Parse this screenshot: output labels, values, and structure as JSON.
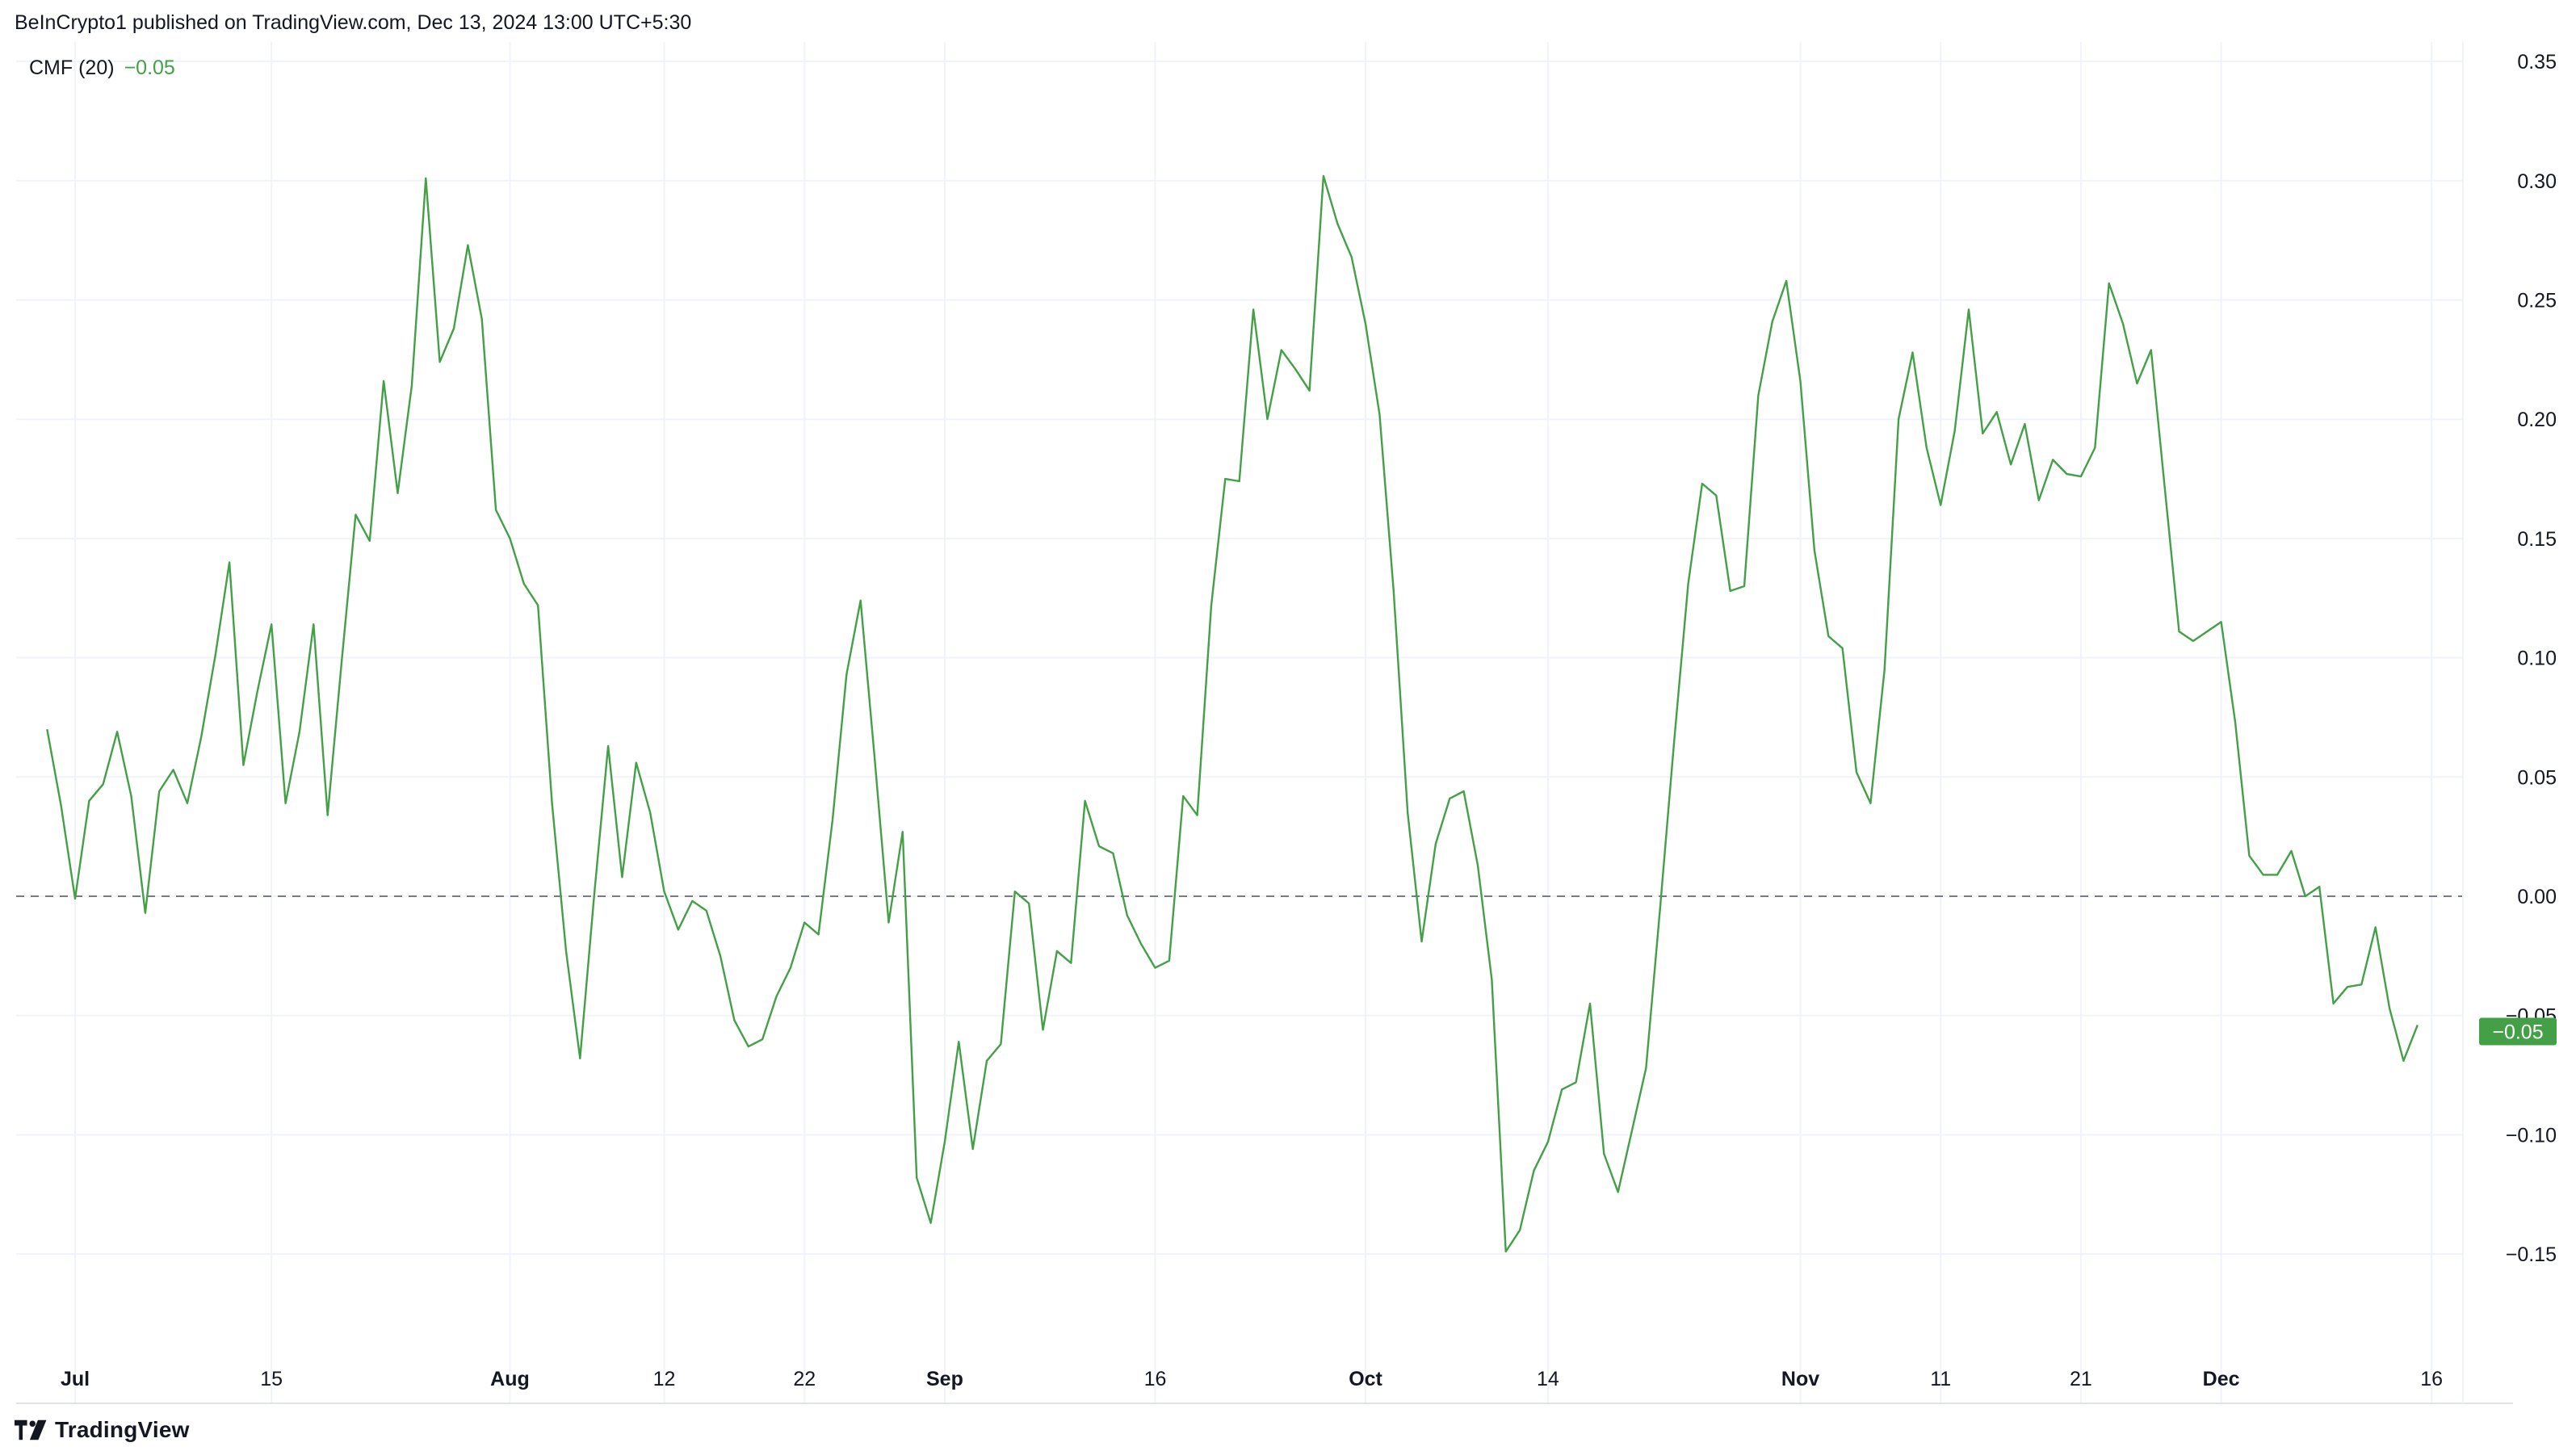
{
  "header": {
    "publisher": "BeInCrypto1 published on TradingView.com, Dec 13, 2024 13:00 UTC+5:30"
  },
  "legend": {
    "indicator": "CMF (20)",
    "value": "−0.05"
  },
  "price_tag": "−0.05",
  "brand": {
    "name": "TradingView"
  },
  "colors": {
    "line": "#43a047",
    "tag": "#43a047",
    "grid": "#f0f3fa",
    "zero_line": "#787b86",
    "text": "#131722"
  },
  "chart_data": {
    "type": "line",
    "title": "",
    "xlabel": "",
    "ylabel": "",
    "ylim": [
      -0.19,
      0.355
    ],
    "grid": true,
    "zero_line": "dashed",
    "y_ticks": [
      "0.35",
      "0.30",
      "0.25",
      "0.20",
      "0.15",
      "0.10",
      "0.05",
      "0.00",
      "−0.05",
      "−0.10",
      "−0.15"
    ],
    "x_ticks": [
      {
        "label": "Jul",
        "date": "2024-07-01",
        "bold": true
      },
      {
        "label": "15",
        "date": "2024-07-15",
        "bold": false
      },
      {
        "label": "Aug",
        "date": "2024-08-01",
        "bold": true
      },
      {
        "label": "12",
        "date": "2024-08-12",
        "bold": false
      },
      {
        "label": "22",
        "date": "2024-08-22",
        "bold": false
      },
      {
        "label": "Sep",
        "date": "2024-09-01",
        "bold": true
      },
      {
        "label": "16",
        "date": "2024-09-16",
        "bold": false
      },
      {
        "label": "Oct",
        "date": "2024-10-01",
        "bold": true
      },
      {
        "label": "14",
        "date": "2024-10-14",
        "bold": false
      },
      {
        "label": "Nov",
        "date": "2024-11-01",
        "bold": true
      },
      {
        "label": "11",
        "date": "2024-11-11",
        "bold": false
      },
      {
        "label": "21",
        "date": "2024-11-21",
        "bold": false
      },
      {
        "label": "Dec",
        "date": "2024-12-01",
        "bold": true
      },
      {
        "label": "16",
        "date": "2024-12-16",
        "bold": false
      }
    ],
    "series": [
      {
        "name": "CMF (20)",
        "color": "#43a047",
        "points": [
          [
            "2024-06-29",
            0.07
          ],
          [
            "2024-06-30",
            0.038
          ],
          [
            "2024-07-01",
            -0.001
          ],
          [
            "2024-07-02",
            0.04
          ],
          [
            "2024-07-03",
            0.047
          ],
          [
            "2024-07-04",
            0.069
          ],
          [
            "2024-07-05",
            0.042
          ],
          [
            "2024-07-06",
            -0.007
          ],
          [
            "2024-07-07",
            0.044
          ],
          [
            "2024-07-08",
            0.053
          ],
          [
            "2024-07-09",
            0.039
          ],
          [
            "2024-07-10",
            0.067
          ],
          [
            "2024-07-11",
            0.101
          ],
          [
            "2024-07-12",
            0.14
          ],
          [
            "2024-07-13",
            0.055
          ],
          [
            "2024-07-14",
            0.086
          ],
          [
            "2024-07-15",
            0.114
          ],
          [
            "2024-07-16",
            0.039
          ],
          [
            "2024-07-17",
            0.069
          ],
          [
            "2024-07-18",
            0.114
          ],
          [
            "2024-07-19",
            0.034
          ],
          [
            "2024-07-20",
            0.098
          ],
          [
            "2024-07-21",
            0.16
          ],
          [
            "2024-07-22",
            0.149
          ],
          [
            "2024-07-23",
            0.216
          ],
          [
            "2024-07-24",
            0.169
          ],
          [
            "2024-07-25",
            0.214
          ],
          [
            "2024-07-26",
            0.301
          ],
          [
            "2024-07-27",
            0.224
          ],
          [
            "2024-07-28",
            0.238
          ],
          [
            "2024-07-29",
            0.273
          ],
          [
            "2024-07-30",
            0.242
          ],
          [
            "2024-07-31",
            0.162
          ],
          [
            "2024-08-01",
            0.15
          ],
          [
            "2024-08-02",
            0.131
          ],
          [
            "2024-08-03",
            0.122
          ],
          [
            "2024-08-04",
            0.039
          ],
          [
            "2024-08-05",
            -0.023
          ],
          [
            "2024-08-06",
            -0.068
          ],
          [
            "2024-08-07",
            0.0
          ],
          [
            "2024-08-08",
            0.063
          ],
          [
            "2024-08-09",
            0.008
          ],
          [
            "2024-08-10",
            0.056
          ],
          [
            "2024-08-11",
            0.035
          ],
          [
            "2024-08-12",
            0.002
          ],
          [
            "2024-08-13",
            -0.014
          ],
          [
            "2024-08-14",
            -0.002
          ],
          [
            "2024-08-15",
            -0.006
          ],
          [
            "2024-08-16",
            -0.025
          ],
          [
            "2024-08-17",
            -0.052
          ],
          [
            "2024-08-18",
            -0.063
          ],
          [
            "2024-08-19",
            -0.06
          ],
          [
            "2024-08-20",
            -0.042
          ],
          [
            "2024-08-21",
            -0.03
          ],
          [
            "2024-08-22",
            -0.011
          ],
          [
            "2024-08-23",
            -0.016
          ],
          [
            "2024-08-24",
            0.032
          ],
          [
            "2024-08-25",
            0.093
          ],
          [
            "2024-08-26",
            0.124
          ],
          [
            "2024-08-27",
            0.058
          ],
          [
            "2024-08-28",
            -0.011
          ],
          [
            "2024-08-29",
            0.027
          ],
          [
            "2024-08-30",
            -0.118
          ],
          [
            "2024-08-31",
            -0.137
          ],
          [
            "2024-09-01",
            -0.103
          ],
          [
            "2024-09-02",
            -0.061
          ],
          [
            "2024-09-03",
            -0.106
          ],
          [
            "2024-09-04",
            -0.069
          ],
          [
            "2024-09-05",
            -0.062
          ],
          [
            "2024-09-06",
            0.002
          ],
          [
            "2024-09-07",
            -0.003
          ],
          [
            "2024-09-08",
            -0.056
          ],
          [
            "2024-09-09",
            -0.023
          ],
          [
            "2024-09-10",
            -0.028
          ],
          [
            "2024-09-11",
            0.04
          ],
          [
            "2024-09-12",
            0.021
          ],
          [
            "2024-09-13",
            0.018
          ],
          [
            "2024-09-14",
            -0.008
          ],
          [
            "2024-09-15",
            -0.02
          ],
          [
            "2024-09-16",
            -0.03
          ],
          [
            "2024-09-17",
            -0.027
          ],
          [
            "2024-09-18",
            0.042
          ],
          [
            "2024-09-19",
            0.034
          ],
          [
            "2024-09-20",
            0.122
          ],
          [
            "2024-09-21",
            0.175
          ],
          [
            "2024-09-22",
            0.174
          ],
          [
            "2024-09-23",
            0.246
          ],
          [
            "2024-09-24",
            0.2
          ],
          [
            "2024-09-25",
            0.229
          ],
          [
            "2024-09-26",
            0.221
          ],
          [
            "2024-09-27",
            0.212
          ],
          [
            "2024-09-28",
            0.302
          ],
          [
            "2024-09-29",
            0.282
          ],
          [
            "2024-09-30",
            0.268
          ],
          [
            "2024-10-01",
            0.24
          ],
          [
            "2024-10-02",
            0.202
          ],
          [
            "2024-10-03",
            0.128
          ],
          [
            "2024-10-04",
            0.035
          ],
          [
            "2024-10-05",
            -0.019
          ],
          [
            "2024-10-06",
            0.022
          ],
          [
            "2024-10-07",
            0.041
          ],
          [
            "2024-10-08",
            0.044
          ],
          [
            "2024-10-09",
            0.013
          ],
          [
            "2024-10-10",
            -0.035
          ],
          [
            "2024-10-11",
            -0.149
          ],
          [
            "2024-10-12",
            -0.14
          ],
          [
            "2024-10-13",
            -0.115
          ],
          [
            "2024-10-14",
            -0.103
          ],
          [
            "2024-10-15",
            -0.081
          ],
          [
            "2024-10-16",
            -0.078
          ],
          [
            "2024-10-17",
            -0.045
          ],
          [
            "2024-10-18",
            -0.108
          ],
          [
            "2024-10-19",
            -0.124
          ],
          [
            "2024-10-20",
            -0.098
          ],
          [
            "2024-10-21",
            -0.072
          ],
          [
            "2024-10-22",
            -0.005
          ],
          [
            "2024-10-23",
            0.065
          ],
          [
            "2024-10-24",
            0.131
          ],
          [
            "2024-10-25",
            0.173
          ],
          [
            "2024-10-26",
            0.168
          ],
          [
            "2024-10-27",
            0.128
          ],
          [
            "2024-10-28",
            0.13
          ],
          [
            "2024-10-29",
            0.21
          ],
          [
            "2024-10-30",
            0.241
          ],
          [
            "2024-10-31",
            0.258
          ],
          [
            "2024-11-01",
            0.216
          ],
          [
            "2024-11-02",
            0.145
          ],
          [
            "2024-11-03",
            0.109
          ],
          [
            "2024-11-04",
            0.104
          ],
          [
            "2024-11-05",
            0.052
          ],
          [
            "2024-11-06",
            0.039
          ],
          [
            "2024-11-07",
            0.095
          ],
          [
            "2024-11-08",
            0.2
          ],
          [
            "2024-11-09",
            0.228
          ],
          [
            "2024-11-10",
            0.188
          ],
          [
            "2024-11-11",
            0.164
          ],
          [
            "2024-11-12",
            0.195
          ],
          [
            "2024-11-13",
            0.246
          ],
          [
            "2024-11-14",
            0.194
          ],
          [
            "2024-11-15",
            0.203
          ],
          [
            "2024-11-16",
            0.181
          ],
          [
            "2024-11-17",
            0.198
          ],
          [
            "2024-11-18",
            0.166
          ],
          [
            "2024-11-19",
            0.183
          ],
          [
            "2024-11-20",
            0.177
          ],
          [
            "2024-11-21",
            0.176
          ],
          [
            "2024-11-22",
            0.188
          ],
          [
            "2024-11-23",
            0.257
          ],
          [
            "2024-11-24",
            0.24
          ],
          [
            "2024-11-25",
            0.215
          ],
          [
            "2024-11-26",
            0.229
          ],
          [
            "2024-11-27",
            0.17
          ],
          [
            "2024-11-28",
            0.111
          ],
          [
            "2024-11-29",
            0.107
          ],
          [
            "2024-11-30",
            0.111
          ],
          [
            "2024-12-01",
            0.115
          ],
          [
            "2024-12-02",
            0.073
          ],
          [
            "2024-12-03",
            0.017
          ],
          [
            "2024-12-04",
            0.009
          ],
          [
            "2024-12-05",
            0.009
          ],
          [
            "2024-12-06",
            0.019
          ],
          [
            "2024-12-07",
            0.0
          ],
          [
            "2024-12-08",
            0.004
          ],
          [
            "2024-12-09",
            -0.045
          ],
          [
            "2024-12-10",
            -0.038
          ],
          [
            "2024-12-11",
            -0.037
          ],
          [
            "2024-12-12",
            -0.013
          ],
          [
            "2024-12-13",
            -0.047
          ],
          [
            "2024-12-14",
            -0.069
          ],
          [
            "2024-12-15",
            -0.054
          ]
        ]
      }
    ]
  }
}
